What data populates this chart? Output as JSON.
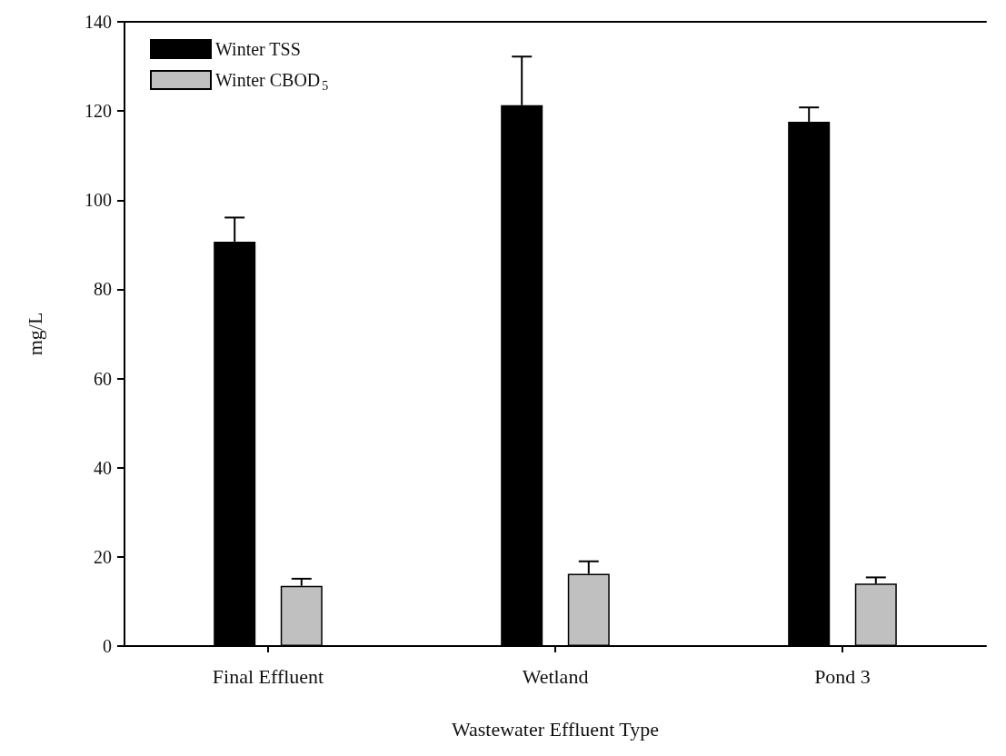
{
  "chart_data": {
    "type": "bar",
    "xlabel": "Wastewater Effluent Type",
    "ylabel": "mg/L",
    "categories": [
      "Final Effluent",
      "Wetland",
      "Pond 3"
    ],
    "series": [
      {
        "name": "Winter TSS",
        "color": "#000000",
        "values": [
          90.7,
          121.3,
          117.6
        ],
        "errors": [
          5.4,
          10.9,
          3.2
        ]
      },
      {
        "name": "Winter CBOD$_{5}$",
        "color": "#c0c0c0",
        "values": [
          13.5,
          16.2,
          14.0
        ],
        "errors": [
          1.6,
          2.8,
          1.4
        ]
      }
    ],
    "ylim": [
      0,
      140
    ],
    "yticks": [
      0,
      20,
      40,
      60,
      80,
      100,
      120,
      140
    ],
    "grid": false,
    "legend": "top left"
  }
}
